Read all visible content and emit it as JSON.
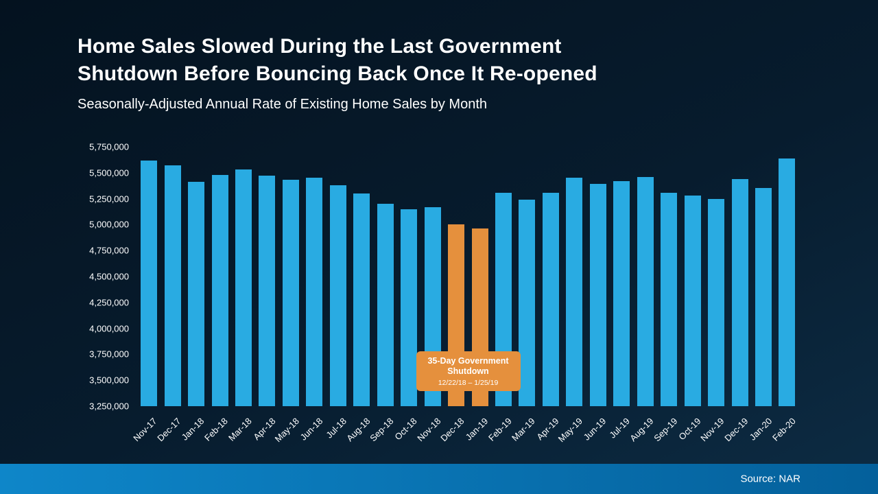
{
  "slide": {
    "title_lines": [
      "Home Sales Slowed During the Last Government",
      "Shutdown Before Bouncing Back Once It Re-opened"
    ],
    "subtitle": "Seasonally-Adjusted Annual Rate of Existing Home Sales by Month",
    "source": "Source: NAR"
  },
  "annotation": {
    "line1": "35-Day Government",
    "line2": "Shutdown",
    "dates": "12/22/18 – 1/25/19"
  },
  "colors": {
    "bar": "#29abe2",
    "bar_highlight": "#e5903d",
    "bg_top": "#04121f",
    "bg_mid": "#071c2e",
    "bg_bottom": "#0d2c44",
    "footer_left": "#0e86c9",
    "footer_right": "#04609b",
    "text": "#ffffff"
  },
  "chart_data": {
    "type": "bar",
    "title": "Seasonally-Adjusted Annual Rate of Existing Home Sales by Month",
    "xlabel": "",
    "ylabel": "",
    "categories": [
      "Nov-17",
      "Dec-17",
      "Jan-18",
      "Feb-18",
      "Mar-18",
      "Apr-18",
      "May-18",
      "Jun-18",
      "Jul-18",
      "Aug-18",
      "Sep-18",
      "Oct-18",
      "Nov-18",
      "Dec-18",
      "Jan-19",
      "Feb-19",
      "Mar-19",
      "Apr-19",
      "May-19",
      "Jun-19",
      "Jul-19",
      "Aug-19",
      "Sep-19",
      "Oct-19",
      "Nov-19",
      "Dec-19",
      "Jan-20",
      "Feb-20"
    ],
    "values": [
      5620000,
      5570000,
      5410000,
      5480000,
      5530000,
      5470000,
      5430000,
      5450000,
      5380000,
      5300000,
      5200000,
      5150000,
      5170000,
      5000000,
      4960000,
      5310000,
      5240000,
      5310000,
      5450000,
      5390000,
      5420000,
      5460000,
      5310000,
      5280000,
      5250000,
      5440000,
      5350000,
      5640000
    ],
    "highlight_indices": [
      13,
      14
    ],
    "highlight_meaning": "35-Day Government Shutdown 12/22/18 – 1/25/19",
    "ylim": [
      3250000,
      5750000
    ],
    "ytick_step": 250000,
    "grid": false,
    "legend": false
  }
}
